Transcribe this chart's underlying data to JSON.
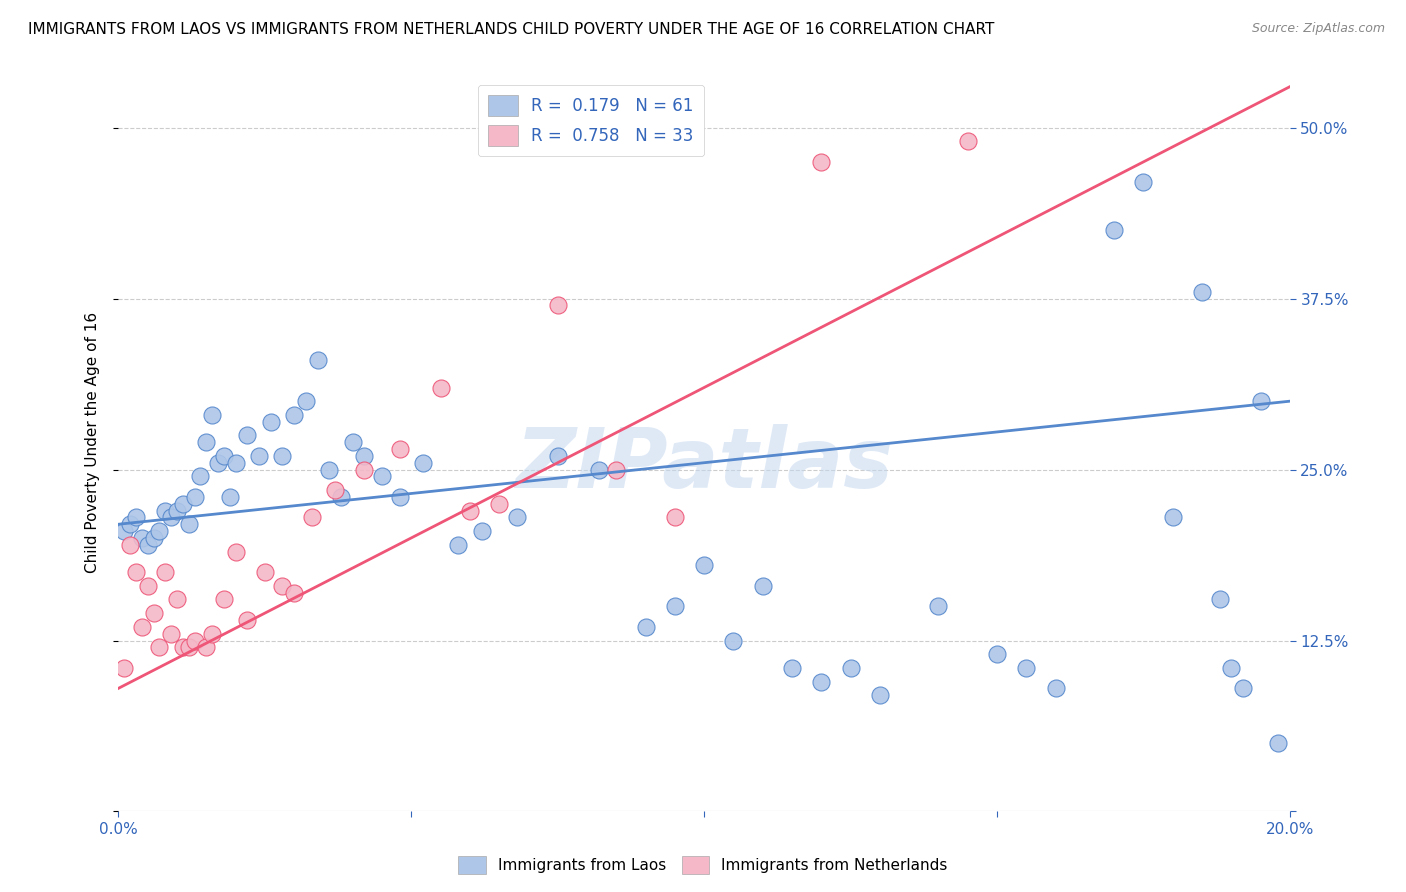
{
  "title": "IMMIGRANTS FROM LAOS VS IMMIGRANTS FROM NETHERLANDS CHILD POVERTY UNDER THE AGE OF 16 CORRELATION CHART",
  "source": "Source: ZipAtlas.com",
  "ylabel": "Child Poverty Under the Age of 16",
  "xlim": [
    0.0,
    0.2
  ],
  "ylim": [
    0.0,
    0.54
  ],
  "xticks": [
    0.0,
    0.05,
    0.1,
    0.15,
    0.2
  ],
  "yticks": [
    0.0,
    0.125,
    0.25,
    0.375,
    0.5
  ],
  "watermark": "ZIPatlas",
  "legend_r1": "R =  0.179",
  "legend_n1": "N = 61",
  "legend_r2": "R =  0.758",
  "legend_n2": "N = 33",
  "label1": "Immigrants from Laos",
  "label2": "Immigrants from Netherlands",
  "color1": "#aec6e8",
  "color2": "#f4b8c8",
  "line_color1": "#5588cc",
  "line_color2": "#ee5577",
  "blue_text_color": "#3366bb",
  "scatter1_x": [
    0.001,
    0.002,
    0.003,
    0.004,
    0.005,
    0.006,
    0.007,
    0.008,
    0.009,
    0.01,
    0.011,
    0.012,
    0.013,
    0.014,
    0.015,
    0.016,
    0.017,
    0.018,
    0.019,
    0.02,
    0.022,
    0.024,
    0.026,
    0.028,
    0.03,
    0.032,
    0.034,
    0.036,
    0.038,
    0.04,
    0.042,
    0.045,
    0.048,
    0.052,
    0.058,
    0.062,
    0.068,
    0.075,
    0.082,
    0.09,
    0.095,
    0.1,
    0.105,
    0.11,
    0.115,
    0.12,
    0.125,
    0.13,
    0.14,
    0.15,
    0.155,
    0.16,
    0.17,
    0.175,
    0.18,
    0.185,
    0.188,
    0.19,
    0.192,
    0.195,
    0.198
  ],
  "scatter1_y": [
    0.205,
    0.21,
    0.215,
    0.2,
    0.195,
    0.2,
    0.205,
    0.22,
    0.215,
    0.22,
    0.225,
    0.21,
    0.23,
    0.245,
    0.27,
    0.29,
    0.255,
    0.26,
    0.23,
    0.255,
    0.275,
    0.26,
    0.285,
    0.26,
    0.29,
    0.3,
    0.33,
    0.25,
    0.23,
    0.27,
    0.26,
    0.245,
    0.23,
    0.255,
    0.195,
    0.205,
    0.215,
    0.26,
    0.25,
    0.135,
    0.15,
    0.18,
    0.125,
    0.165,
    0.105,
    0.095,
    0.105,
    0.085,
    0.15,
    0.115,
    0.105,
    0.09,
    0.425,
    0.46,
    0.215,
    0.38,
    0.155,
    0.105,
    0.09,
    0.3,
    0.05
  ],
  "scatter2_x": [
    0.001,
    0.002,
    0.003,
    0.004,
    0.005,
    0.006,
    0.007,
    0.008,
    0.009,
    0.01,
    0.011,
    0.012,
    0.013,
    0.015,
    0.016,
    0.018,
    0.02,
    0.022,
    0.025,
    0.028,
    0.03,
    0.033,
    0.037,
    0.042,
    0.048,
    0.055,
    0.06,
    0.065,
    0.075,
    0.085,
    0.095,
    0.12,
    0.145
  ],
  "scatter2_y": [
    0.105,
    0.195,
    0.175,
    0.135,
    0.165,
    0.145,
    0.12,
    0.175,
    0.13,
    0.155,
    0.12,
    0.12,
    0.125,
    0.12,
    0.13,
    0.155,
    0.19,
    0.14,
    0.175,
    0.165,
    0.16,
    0.215,
    0.235,
    0.25,
    0.265,
    0.31,
    0.22,
    0.225,
    0.37,
    0.25,
    0.215,
    0.475,
    0.49
  ],
  "line1_x": [
    0.0,
    0.2
  ],
  "line1_y": [
    0.21,
    0.3
  ],
  "line2_x": [
    0.0,
    0.2
  ],
  "line2_y": [
    0.09,
    0.53
  ]
}
